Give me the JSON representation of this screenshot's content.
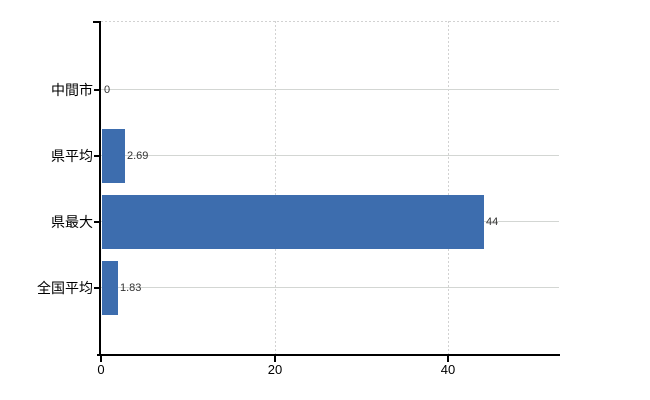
{
  "chart_data": {
    "type": "bar",
    "orientation": "horizontal",
    "title": "",
    "xlabel": "",
    "ylabel": "",
    "categories": [
      "中間市",
      "県平均",
      "県最大",
      "全国平均"
    ],
    "values": [
      0,
      2.69,
      44,
      1.83
    ],
    "value_labels": [
      "0",
      "2.69",
      "44",
      "1.83"
    ],
    "x_ticks": [
      0,
      20,
      40
    ],
    "x_tick_labels": [
      "0",
      "20",
      "40"
    ],
    "xlim": [
      0,
      52.8
    ],
    "grid": true,
    "legend": false,
    "bar_color": "#3d6dae",
    "gridline_color": "#d3d3d3",
    "axis_color": "#000000",
    "background_color": "#ffffff"
  }
}
